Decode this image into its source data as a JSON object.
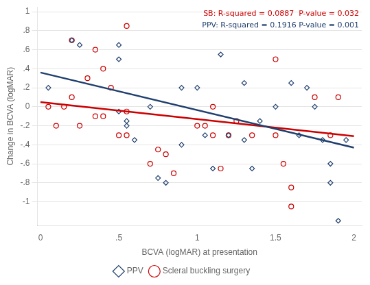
{
  "chart_data": {
    "type": "scatter",
    "xlabel": "BCVA (logMAR) at presentation",
    "ylabel": "Change in BCVA (logMAR)",
    "xlim": [
      -0.02,
      2.05
    ],
    "ylim": [
      -1.25,
      1.05
    ],
    "xticks": [
      0,
      {
        "value": 0.5,
        "label": ".5"
      },
      1,
      1.5,
      2
    ],
    "yticks": [
      -1,
      {
        "value": -0.8,
        "label": "-.8"
      },
      {
        "value": -0.6,
        "label": "-.6"
      },
      {
        "value": -0.4,
        "label": "-.4"
      },
      {
        "value": -0.2,
        "label": "-.2"
      },
      0,
      {
        "value": 0.2,
        "label": ".2"
      },
      {
        "value": 0.4,
        "label": ".4"
      },
      {
        "value": 0.6,
        "label": ".6"
      },
      {
        "value": 0.8,
        "label": ".8"
      },
      1
    ],
    "grid": "y",
    "legend": "bottom",
    "annotations": [
      {
        "text": "SB: R-squared = 0.0887  P-value = 0.032",
        "color": "#cc0000"
      },
      {
        "text": "PPV: R-squared = 0.1916 P-value = 0.001",
        "color": "#1f3f6e"
      }
    ],
    "series": [
      {
        "name": "PPV",
        "type": "scatter",
        "marker": "diamond",
        "color": "#1f3f6e",
        "x": [
          0.05,
          0.2,
          0.25,
          0.5,
          0.5,
          0.5,
          0.55,
          0.55,
          0.6,
          0.7,
          0.75,
          0.8,
          0.9,
          0.9,
          1.0,
          1.05,
          1.1,
          1.15,
          1.2,
          1.3,
          1.3,
          1.35,
          1.4,
          1.5,
          1.6,
          1.65,
          1.7,
          1.75,
          1.8,
          1.85,
          1.85,
          1.9,
          1.95
        ],
        "values": [
          0.2,
          0.7,
          0.65,
          0.65,
          0.5,
          -0.05,
          -0.15,
          -0.2,
          -0.35,
          0.0,
          -0.75,
          -0.8,
          -0.4,
          0.2,
          0.2,
          -0.3,
          -0.65,
          0.55,
          -0.3,
          0.25,
          -0.35,
          -0.65,
          -0.15,
          0.0,
          0.25,
          -0.3,
          0.2,
          0.0,
          -0.35,
          -0.6,
          -0.8,
          -1.2,
          -0.35
        ]
      },
      {
        "name": "Scleral buckling surgery",
        "type": "scatter",
        "marker": "circle",
        "color": "#cc0000",
        "x": [
          0.05,
          0.1,
          0.15,
          0.2,
          0.2,
          0.25,
          0.3,
          0.35,
          0.35,
          0.4,
          0.4,
          0.45,
          0.5,
          0.55,
          0.55,
          0.55,
          0.7,
          0.75,
          0.8,
          0.85,
          1.0,
          1.05,
          1.1,
          1.1,
          1.15,
          1.2,
          1.25,
          1.35,
          1.5,
          1.5,
          1.55,
          1.6,
          1.6,
          1.75,
          1.85,
          1.9
        ],
        "values": [
          0.0,
          -0.2,
          0.0,
          0.7,
          0.1,
          -0.2,
          0.3,
          0.6,
          -0.1,
          0.4,
          -0.1,
          0.2,
          -0.3,
          0.85,
          -0.05,
          -0.3,
          -0.6,
          -0.45,
          -0.5,
          -0.7,
          -0.2,
          -0.2,
          0.0,
          -0.3,
          -0.65,
          -0.3,
          -0.15,
          -0.3,
          0.5,
          -0.3,
          -0.6,
          -0.85,
          -1.05,
          0.1,
          -0.3,
          0.1
        ]
      },
      {
        "type": "line",
        "line_style": "solid",
        "color": "#1f3f6e",
        "x": [
          0.0,
          2.0
        ],
        "values": [
          0.36,
          -0.43
        ]
      },
      {
        "type": "line",
        "line_style": "solid",
        "color": "#cc0000",
        "x": [
          0.0,
          2.0
        ],
        "values": [
          0.05,
          -0.31
        ]
      }
    ]
  }
}
